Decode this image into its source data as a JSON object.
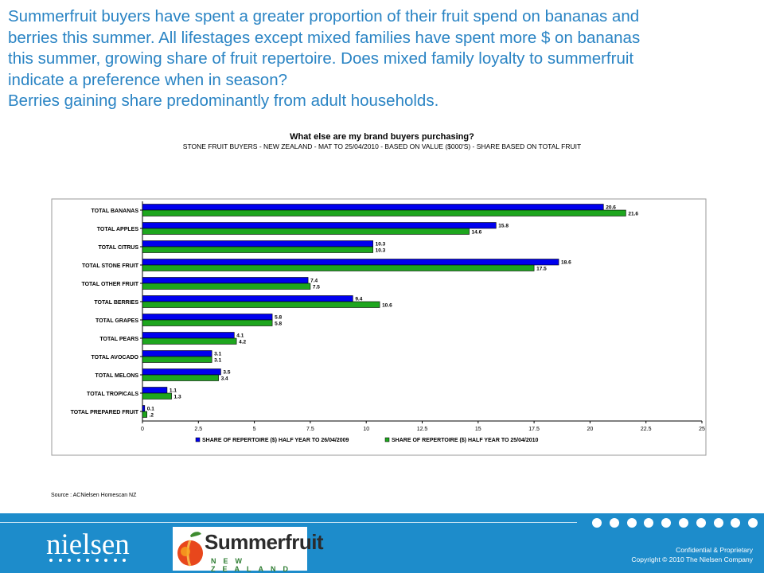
{
  "headline": [
    "Summerfruit buyers have spent a greater proportion of their fruit spend on bananas and",
    "berries this summer. All lifestages except mixed families have spent more $ on bananas",
    "this summer, growing share of fruit repertoire. Does mixed family loyalty to summerfruit",
    "indicate a preference when in season?",
    "Berries gaining share predominantly from adult households."
  ],
  "chart_data": {
    "type": "bar",
    "orientation": "horizontal",
    "title": "What else are my brand buyers purchasing?",
    "subtitle": "STONE FRUIT BUYERS - NEW ZEALAND - MAT TO 25/04/2010 - BASED ON VALUE ($000'S) - SHARE BASED ON TOTAL FRUIT",
    "categories": [
      "TOTAL BANANAS",
      "TOTAL APPLES",
      "TOTAL CITRUS",
      "TOTAL STONE FRUIT",
      "TOTAL OTHER FRUIT",
      "TOTAL BERRIES",
      "TOTAL GRAPES",
      "TOTAL PEARS",
      "TOTAL AVOCADO",
      "TOTAL MELONS",
      "TOTAL TROPICALS",
      "TOTAL PREPARED FRUIT"
    ],
    "series": [
      {
        "name": "SHARE OF REPERTOIRE ($) HALF YEAR TO 26/04/2009",
        "color": "#0000ee",
        "values": [
          20.6,
          15.8,
          10.3,
          18.6,
          7.4,
          9.4,
          5.8,
          4.1,
          3.1,
          3.5,
          1.1,
          0.1
        ],
        "labels": [
          "20.6",
          "15.8",
          "10.3",
          "18.6",
          "7.4",
          "9.4",
          "5.8",
          "4.1",
          "3.1",
          "3.5",
          "1.1",
          "0.1"
        ]
      },
      {
        "name": "SHARE OF REPERTOIRE ($) HALF YEAR TO 25/04/2010",
        "color": "#1ea61e",
        "values": [
          21.6,
          14.6,
          10.3,
          17.5,
          7.5,
          10.6,
          5.8,
          4.2,
          3.1,
          3.4,
          1.3,
          0.2
        ],
        "labels": [
          "21.6",
          "14.6",
          "10.3",
          "17.5",
          "7.5",
          "10.6",
          "5.8",
          "4.2",
          "3.1",
          "3.4",
          "1.3",
          ".2"
        ]
      }
    ],
    "xlim": [
      0,
      25
    ],
    "xticks": [
      "0",
      "2.5",
      "5",
      "7.5",
      "10",
      "12.5",
      "15",
      "17.5",
      "20",
      "22.5",
      "25"
    ],
    "legend_position": "bottom",
    "grid": false
  },
  "source": "Source : ACNielsen Homescan NZ",
  "footer": {
    "brand": "nielsen",
    "partner_logo_word": "Summerfruit",
    "partner_logo_sub": "NEW ZEALAND",
    "confidential": "Confidential & Proprietary",
    "copyright": "Copyright © 2010 The Nielsen Company",
    "dot_count": 10
  }
}
